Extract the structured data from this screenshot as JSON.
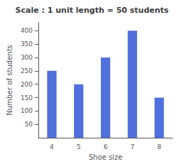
{
  "chart_data": {
    "type": "bar",
    "title": "Scale : 1 unit length = 50 students",
    "xlabel": "Shoe size",
    "ylabel": "Number of students",
    "categories": [
      "4",
      "5",
      "6",
      "7",
      "8"
    ],
    "values": [
      250,
      200,
      300,
      400,
      150
    ],
    "ylim": [
      0,
      430
    ],
    "yticks": [
      50,
      100,
      150,
      200,
      250,
      300,
      350,
      400
    ],
    "grid": false
  }
}
